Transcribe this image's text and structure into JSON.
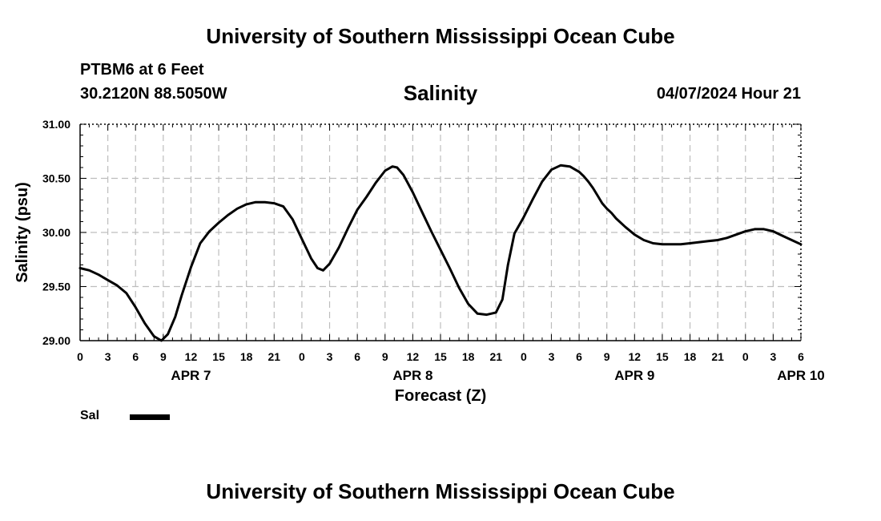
{
  "page": {
    "title": "University of Southern Mississippi Ocean Cube",
    "footer_title": "University of Southern Mississippi Ocean Cube",
    "station": "PTBM6 at 6 Feet",
    "coordinates": "30.2120N  88.5050W",
    "timestamp": "04/07/2024 Hour 21"
  },
  "chart_data": {
    "type": "line",
    "title": "Salinity",
    "xlabel": "Forecast (Z)",
    "ylabel": "Salinity (psu)",
    "x_unit": "hours since APR 7 00Z",
    "xlim": [
      0,
      78
    ],
    "ylim": [
      29.0,
      31.0
    ],
    "grid": true,
    "legend_position": "bottom-left",
    "y_ticks": [
      29.0,
      29.5,
      30.0,
      30.5,
      31.0
    ],
    "y_tick_labels": [
      "29.00",
      "29.50",
      "30.00",
      "30.50",
      "31.00"
    ],
    "x_ticks": [
      0,
      3,
      6,
      9,
      12,
      15,
      18,
      21,
      24,
      27,
      30,
      33,
      36,
      39,
      42,
      45,
      48,
      51,
      54,
      57,
      60,
      63,
      66,
      69,
      72,
      75,
      78
    ],
    "x_tick_labels": [
      "0",
      "3",
      "6",
      "9",
      "12",
      "15",
      "18",
      "21",
      "0",
      "3",
      "6",
      "9",
      "12",
      "15",
      "18",
      "21",
      "0",
      "3",
      "6",
      "9",
      "12",
      "15",
      "18",
      "21",
      "0",
      "3",
      "6"
    ],
    "day_labels": [
      {
        "x": 12,
        "label": "APR 7"
      },
      {
        "x": 36,
        "label": "APR 8"
      },
      {
        "x": 60,
        "label": "APR 9"
      },
      {
        "x": 78,
        "label": "APR 10"
      }
    ],
    "series": [
      {
        "name": "Sal",
        "x": [
          0,
          1,
          2,
          3,
          4,
          5,
          6,
          7,
          8,
          8.8,
          9.5,
          10.3,
          11,
          12,
          13,
          14,
          15,
          16,
          17,
          18,
          19,
          20,
          21,
          22,
          23,
          24,
          25,
          25.7,
          26.3,
          27,
          28,
          29,
          30,
          31,
          32,
          33,
          33.8,
          34.3,
          35,
          36,
          37,
          38,
          39,
          40,
          41,
          42,
          43,
          44,
          45,
          45.7,
          46.3,
          47,
          48,
          49,
          50,
          51,
          52,
          53,
          54,
          54.5,
          55,
          55.5,
          56,
          56.5,
          57,
          57.5,
          58,
          59,
          60,
          61,
          62,
          63,
          64,
          65,
          66,
          67,
          68,
          69,
          70,
          71,
          72,
          73,
          74,
          75,
          76,
          77,
          78
        ],
        "values": [
          29.67,
          29.65,
          29.61,
          29.56,
          29.51,
          29.44,
          29.31,
          29.16,
          29.04,
          29.0,
          29.06,
          29.22,
          29.42,
          29.68,
          29.9,
          30.01,
          30.09,
          30.16,
          30.22,
          30.26,
          30.28,
          30.28,
          30.27,
          30.24,
          30.12,
          29.94,
          29.76,
          29.67,
          29.65,
          29.71,
          29.86,
          30.04,
          30.21,
          30.33,
          30.46,
          30.57,
          30.61,
          30.6,
          30.53,
          30.37,
          30.19,
          30.01,
          29.84,
          29.67,
          29.49,
          29.34,
          29.25,
          29.24,
          29.26,
          29.38,
          29.7,
          29.99,
          30.14,
          30.31,
          30.47,
          30.58,
          30.62,
          30.61,
          30.56,
          30.52,
          30.47,
          30.41,
          30.34,
          30.27,
          30.22,
          30.18,
          30.13,
          30.05,
          29.98,
          29.93,
          29.9,
          29.89,
          29.89,
          29.89,
          29.9,
          29.91,
          29.92,
          29.93,
          29.95,
          29.98,
          30.01,
          30.03,
          30.03,
          30.01,
          29.97,
          29.93,
          29.89
        ]
      }
    ]
  }
}
